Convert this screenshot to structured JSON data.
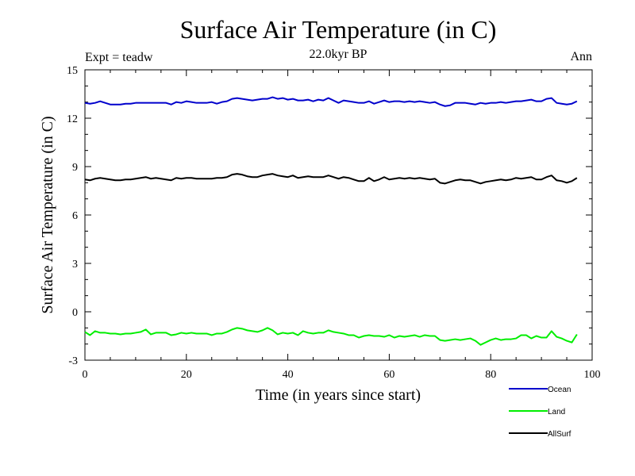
{
  "chart_data": {
    "type": "line",
    "title": "Surface Air Temperature (in C)",
    "subtitle": "22.0kyr BP",
    "left_label": "Expt = teadw",
    "right_label": "Ann",
    "xlabel": "Time (in years since start)",
    "ylabel": "Surface Air Temperature (in C)",
    "xlim": [
      0,
      100
    ],
    "ylim": [
      -3,
      15
    ],
    "x_ticks": [
      0,
      20,
      40,
      60,
      80,
      100
    ],
    "y_ticks": [
      -3,
      0,
      3,
      6,
      9,
      12,
      15
    ],
    "x_tick_labels": [
      "0",
      "20",
      "40",
      "60",
      "80",
      "100"
    ],
    "y_tick_labels": [
      "-3",
      "0",
      "3",
      "6",
      "9",
      "12",
      "15"
    ],
    "x": [
      0,
      1,
      2,
      3,
      4,
      5,
      6,
      7,
      8,
      9,
      10,
      11,
      12,
      13,
      14,
      15,
      16,
      17,
      18,
      19,
      20,
      21,
      22,
      23,
      24,
      25,
      26,
      27,
      28,
      29,
      30,
      31,
      32,
      33,
      34,
      35,
      36,
      37,
      38,
      39,
      40,
      41,
      42,
      43,
      44,
      45,
      46,
      47,
      48,
      49,
      50,
      51,
      52,
      53,
      54,
      55,
      56,
      57,
      58,
      59,
      60,
      61,
      62,
      63,
      64,
      65,
      66,
      67,
      68,
      69,
      70,
      71,
      72,
      73,
      74,
      75,
      76,
      77,
      78,
      79,
      80,
      81,
      82,
      83,
      84,
      85,
      86,
      87,
      88,
      89,
      90,
      91,
      92,
      93,
      94,
      95,
      96,
      97
    ],
    "series": [
      {
        "name": "Ocean",
        "color": "#0000cc",
        "values": [
          12.95,
          12.9,
          12.95,
          13.05,
          12.95,
          12.85,
          12.85,
          12.85,
          12.9,
          12.9,
          12.95,
          12.95,
          12.95,
          12.95,
          12.95,
          12.95,
          12.95,
          12.85,
          13.0,
          12.95,
          13.05,
          13.0,
          12.95,
          12.95,
          12.95,
          13.0,
          12.9,
          13.0,
          13.05,
          13.2,
          13.25,
          13.2,
          13.15,
          13.1,
          13.15,
          13.2,
          13.2,
          13.3,
          13.2,
          13.25,
          13.15,
          13.2,
          13.1,
          13.1,
          13.15,
          13.05,
          13.15,
          13.1,
          13.25,
          13.1,
          12.95,
          13.1,
          13.05,
          13.0,
          12.95,
          12.95,
          13.05,
          12.9,
          13.0,
          13.1,
          13.0,
          13.05,
          13.05,
          13.0,
          13.05,
          13.0,
          13.05,
          13.0,
          12.95,
          13.0,
          12.85,
          12.75,
          12.8,
          12.95,
          12.95,
          12.95,
          12.9,
          12.85,
          12.95,
          12.9,
          12.95,
          12.95,
          13.0,
          12.95,
          13.0,
          13.05,
          13.05,
          13.1,
          13.15,
          13.05,
          13.05,
          13.2,
          13.25,
          12.95,
          12.9,
          12.85,
          12.9,
          13.05
        ]
      },
      {
        "name": "Land",
        "color": "#00ee00",
        "values": [
          -1.25,
          -1.45,
          -1.2,
          -1.3,
          -1.3,
          -1.35,
          -1.35,
          -1.4,
          -1.35,
          -1.35,
          -1.3,
          -1.25,
          -1.1,
          -1.4,
          -1.3,
          -1.3,
          -1.3,
          -1.45,
          -1.4,
          -1.3,
          -1.35,
          -1.3,
          -1.35,
          -1.35,
          -1.35,
          -1.45,
          -1.35,
          -1.35,
          -1.25,
          -1.1,
          -1.0,
          -1.05,
          -1.15,
          -1.2,
          -1.25,
          -1.15,
          -1.0,
          -1.15,
          -1.4,
          -1.3,
          -1.35,
          -1.3,
          -1.45,
          -1.2,
          -1.3,
          -1.35,
          -1.3,
          -1.3,
          -1.15,
          -1.25,
          -1.3,
          -1.35,
          -1.45,
          -1.45,
          -1.6,
          -1.5,
          -1.45,
          -1.5,
          -1.5,
          -1.55,
          -1.45,
          -1.6,
          -1.5,
          -1.55,
          -1.5,
          -1.45,
          -1.55,
          -1.45,
          -1.5,
          -1.5,
          -1.75,
          -1.8,
          -1.75,
          -1.7,
          -1.75,
          -1.7,
          -1.65,
          -1.8,
          -2.05,
          -1.9,
          -1.75,
          -1.65,
          -1.75,
          -1.7,
          -1.7,
          -1.65,
          -1.45,
          -1.45,
          -1.65,
          -1.5,
          -1.6,
          -1.6,
          -1.2,
          -1.55,
          -1.65,
          -1.8,
          -1.9,
          -1.4
        ]
      },
      {
        "name": "AllSurf",
        "color": "#000000",
        "values": [
          8.2,
          8.15,
          8.25,
          8.3,
          8.25,
          8.2,
          8.15,
          8.15,
          8.2,
          8.2,
          8.25,
          8.3,
          8.35,
          8.25,
          8.3,
          8.25,
          8.2,
          8.15,
          8.3,
          8.25,
          8.3,
          8.3,
          8.25,
          8.25,
          8.25,
          8.25,
          8.3,
          8.3,
          8.35,
          8.5,
          8.55,
          8.5,
          8.4,
          8.35,
          8.35,
          8.45,
          8.5,
          8.55,
          8.45,
          8.4,
          8.35,
          8.45,
          8.3,
          8.35,
          8.4,
          8.35,
          8.35,
          8.35,
          8.45,
          8.35,
          8.25,
          8.35,
          8.3,
          8.2,
          8.1,
          8.1,
          8.3,
          8.1,
          8.2,
          8.35,
          8.2,
          8.25,
          8.3,
          8.25,
          8.3,
          8.25,
          8.3,
          8.25,
          8.2,
          8.25,
          8.0,
          7.95,
          8.05,
          8.15,
          8.2,
          8.15,
          8.15,
          8.05,
          7.95,
          8.05,
          8.1,
          8.15,
          8.2,
          8.15,
          8.2,
          8.3,
          8.25,
          8.3,
          8.35,
          8.2,
          8.2,
          8.35,
          8.45,
          8.15,
          8.1,
          8.0,
          8.1,
          8.3
        ]
      }
    ],
    "legend_position": "bottom-right"
  }
}
